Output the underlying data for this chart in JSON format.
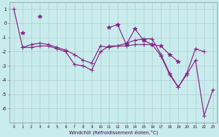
{
  "xlabel": "Windchill (Refroidissement éolien,°C)",
  "bg_color": "#c8ecec",
  "grid_color": "#b0c8d0",
  "line_color": "#882288",
  "x": [
    0,
    1,
    2,
    3,
    4,
    5,
    6,
    7,
    8,
    9,
    10,
    11,
    12,
    13,
    14,
    15,
    16,
    17,
    18,
    19,
    20,
    21,
    22,
    23
  ],
  "lineA": [
    1.0,
    -1.7,
    -1.7,
    -1.6,
    -1.6,
    -1.8,
    -2.0,
    -2.9,
    -3.0,
    -3.3,
    -2.0,
    -1.6,
    -1.6,
    -1.6,
    -1.5,
    -1.5,
    -1.5,
    -2.3,
    -3.6,
    -4.5,
    -3.6,
    -2.6,
    -6.5,
    -4.7
  ],
  "lineB": [
    null,
    -0.7,
    null,
    0.5,
    null,
    null,
    null,
    null,
    null,
    null,
    null,
    -0.3,
    -0.1,
    -1.5,
    -0.4,
    -1.2,
    -1.5,
    -1.6,
    -2.2,
    -2.7,
    null,
    null,
    null,
    null
  ],
  "lineC": [
    null,
    -1.7,
    -1.5,
    -1.4,
    -1.5,
    -1.7,
    -1.9,
    -2.2,
    -2.6,
    -2.8,
    -1.6,
    -1.7,
    -1.6,
    -1.4,
    -1.2,
    -1.1,
    -1.1,
    -2.2,
    -3.5,
    -4.5,
    -3.5,
    -1.8,
    -2.0,
    null
  ],
  "ylim": [
    -7.0,
    1.5
  ],
  "xlim": [
    -0.5,
    23.5
  ],
  "yticks": [
    1,
    0,
    -1,
    -2,
    -3,
    -4,
    -5,
    -6
  ],
  "xticks": [
    0,
    1,
    2,
    3,
    4,
    5,
    6,
    7,
    8,
    9,
    10,
    11,
    12,
    13,
    14,
    15,
    16,
    17,
    18,
    19,
    20,
    21,
    22,
    23
  ]
}
